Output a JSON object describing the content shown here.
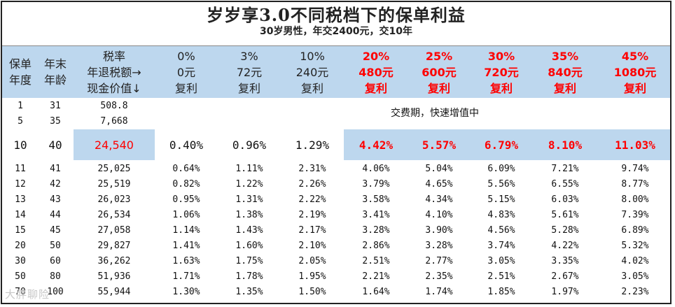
{
  "title": "岁岁享3.0不同税档下的保单利益",
  "subtitle": "30岁男性，年交2400元，交10年",
  "headers": {
    "year": [
      "保单",
      "年度"
    ],
    "age": [
      "年末",
      "年龄"
    ],
    "cash": [
      "税率",
      "年退税额→",
      "现金价值↓"
    ],
    "rates": [
      {
        "rate": "0%",
        "refund": "0元",
        "note": "复利"
      },
      {
        "rate": "3%",
        "refund": "72元",
        "note": "复利"
      },
      {
        "rate": "10%",
        "refund": "240元",
        "note": "复利"
      },
      {
        "rate": "20%",
        "refund": "480元",
        "note": "复利"
      },
      {
        "rate": "25%",
        "refund": "600元",
        "note": "复利"
      },
      {
        "rate": "30%",
        "refund": "720元",
        "note": "复利"
      },
      {
        "rate": "35%",
        "refund": "840元",
        "note": "复利"
      },
      {
        "rate": "45%",
        "refund": "1080元",
        "note": "复利"
      }
    ]
  },
  "payment_note": "交费期，快速增值中",
  "rows_top": [
    {
      "year": "1",
      "age": "31",
      "cash": "508.8"
    },
    {
      "year": "5",
      "age": "35",
      "cash": "7,668"
    }
  ],
  "row_highlight": {
    "year": "10",
    "age": "40",
    "cash": "24,540",
    "values": [
      "0.40%",
      "0.96%",
      "1.29%",
      "4.42%",
      "5.57%",
      "6.79%",
      "8.10%",
      "11.03%"
    ]
  },
  "rows": [
    {
      "year": "11",
      "age": "41",
      "cash": "25,025",
      "values": [
        "0.64%",
        "1.11%",
        "2.31%",
        "4.06%",
        "5.04%",
        "6.09%",
        "7.21%",
        "9.74%"
      ]
    },
    {
      "year": "12",
      "age": "42",
      "cash": "25,519",
      "values": [
        "0.82%",
        "1.22%",
        "2.26%",
        "3.79%",
        "4.65%",
        "5.56%",
        "6.55%",
        "8.77%"
      ]
    },
    {
      "year": "13",
      "age": "43",
      "cash": "26,023",
      "values": [
        "0.95%",
        "1.31%",
        "2.22%",
        "3.58%",
        "4.34%",
        "5.15%",
        "6.03%",
        "8.00%"
      ]
    },
    {
      "year": "14",
      "age": "44",
      "cash": "26,534",
      "values": [
        "1.06%",
        "1.38%",
        "2.19%",
        "3.41%",
        "4.10%",
        "4.83%",
        "5.61%",
        "7.39%"
      ]
    },
    {
      "year": "15",
      "age": "45",
      "cash": "27,058",
      "values": [
        "1.14%",
        "1.43%",
        "2.17%",
        "3.28%",
        "3.90%",
        "4.56%",
        "5.28%",
        "6.89%"
      ]
    },
    {
      "year": "20",
      "age": "50",
      "cash": "29,827",
      "values": [
        "1.41%",
        "1.60%",
        "2.10%",
        "2.86%",
        "3.28%",
        "3.74%",
        "4.22%",
        "5.32%"
      ]
    },
    {
      "year": "30",
      "age": "60",
      "cash": "36,262",
      "values": [
        "1.63%",
        "1.75%",
        "2.05%",
        "2.51%",
        "2.77%",
        "3.05%",
        "3.35%",
        "4.02%"
      ]
    },
    {
      "year": "50",
      "age": "80",
      "cash": "51,936",
      "values": [
        "1.71%",
        "1.78%",
        "1.95%",
        "2.21%",
        "2.35%",
        "2.51%",
        "2.67%",
        "3.05%"
      ]
    },
    {
      "year": "70",
      "age": "100",
      "cash": "55,944",
      "values": [
        "1.30%",
        "1.35%",
        "1.50%",
        "1.64%",
        "1.74%",
        "1.85%",
        "1.97%",
        "2.23%"
      ]
    }
  ],
  "watermark": "大胖聊险",
  "colors": {
    "header_bg": "#bdd7ee",
    "highlight_red": "#ff0000"
  }
}
